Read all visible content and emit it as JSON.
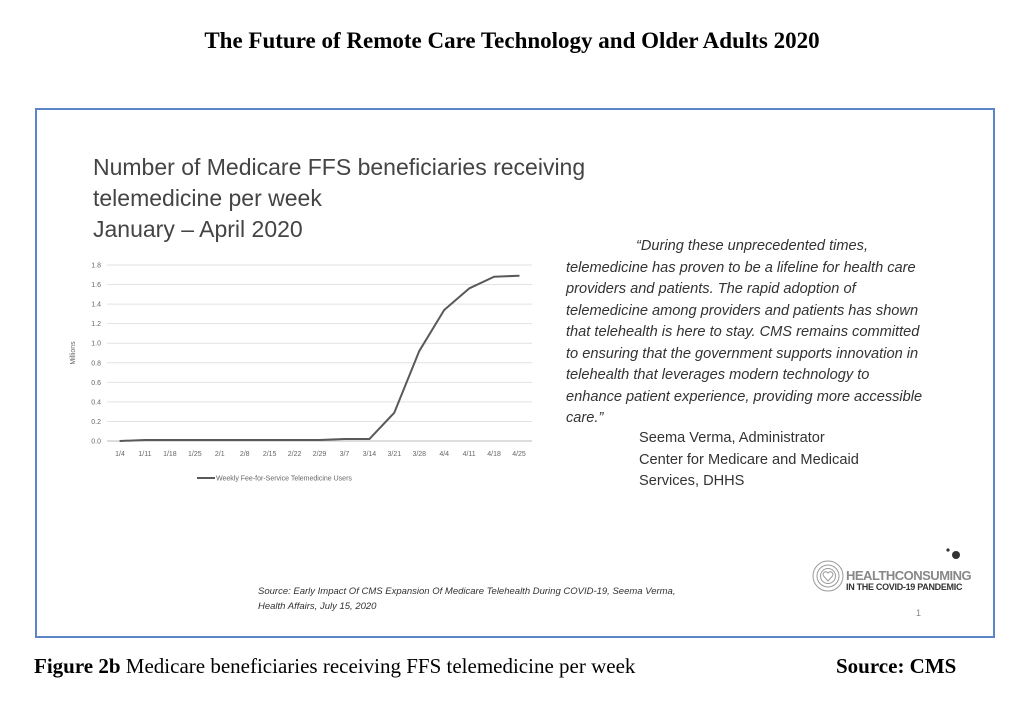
{
  "document_title": "The Future of Remote Care Technology and Older Adults 2020",
  "slide": {
    "title_lines": [
      "Number of Medicare FFS beneficiaries receiving",
      "telemedicine per week",
      "January – April 2020"
    ],
    "quote_lines": [
      "“During these unprecedented times,",
      "telemedicine has proven to be a lifeline for health care",
      "providers and patients. The rapid adoption of",
      "telemedicine among providers and patients has shown",
      "that telehealth is here to stay. CMS remains committed",
      "to ensuring that the government supports innovation in",
      "telehealth that leverages modern technology to",
      "enhance patient experience, providing more accessible",
      "care.”"
    ],
    "attribution_lines": [
      "Seema Verma, Administrator",
      "Center for Medicare and Medicaid",
      "Services, DHHS"
    ],
    "source_lines": [
      "Source: Early Impact Of CMS Expansion Of Medicare Telehealth During COVID-19, Seema Verma,",
      "Health Affairs, July 15, 2020"
    ],
    "logo_text": [
      "HEALTHCONSUMING",
      "IN THE COVID-19 PANDEMIC"
    ],
    "page_number": "1"
  },
  "caption": {
    "label": "Figure 2b",
    "text": " Medicare beneficiaries receiving FFS telemedicine per week",
    "source": "Source: CMS"
  },
  "chart_data": {
    "type": "line",
    "title": "Number of Medicare FFS beneficiaries receiving telemedicine per week January – April 2020",
    "xlabel": "",
    "ylabel": "Millions",
    "ylim": [
      0,
      1.8
    ],
    "yticks": [
      "0.0",
      "0.2",
      "0.4",
      "0.6",
      "0.8",
      "1.0",
      "1.2",
      "1.4",
      "1.6",
      "1.8"
    ],
    "grid": true,
    "legend_position": "bottom",
    "categories": [
      "1/4",
      "1/11",
      "1/18",
      "1/25",
      "2/1",
      "2/8",
      "2/15",
      "2/22",
      "2/29",
      "3/7",
      "3/14",
      "3/21",
      "3/28",
      "4/4",
      "4/11",
      "4/18",
      "4/25"
    ],
    "series": [
      {
        "name": "Weekly Fee-for-Service Telemedicine Users",
        "color": "#595959",
        "values": [
          0.0,
          0.01,
          0.01,
          0.01,
          0.01,
          0.01,
          0.01,
          0.01,
          0.01,
          0.02,
          0.02,
          0.29,
          0.92,
          1.34,
          1.56,
          1.68,
          1.69
        ]
      }
    ]
  }
}
